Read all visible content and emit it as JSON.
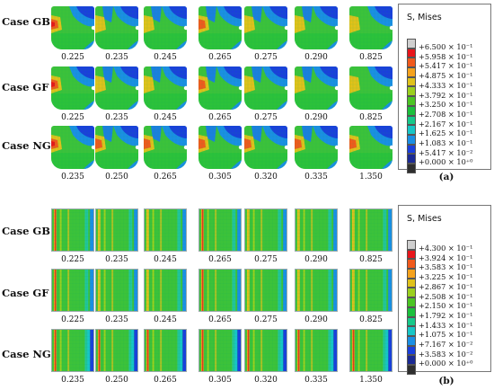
{
  "panels": [
    {
      "sub_label": "(a)",
      "legend": {
        "title": "S, Mises",
        "ticks": [
          "+6.500 × 10⁻¹",
          "+5.958 × 10⁻¹",
          "+5.417 × 10⁻¹",
          "+4.875 × 10⁻¹",
          "+4.333 × 10⁻¹",
          "+3.792 × 10⁻¹",
          "+3.250 × 10⁻¹",
          "+2.708 × 10⁻¹",
          "+2.167 × 10⁻¹",
          "+1.625 × 10⁻¹",
          "+1.083 × 10⁻¹",
          "+5.417 × 10⁻²",
          "+0.000 × 10⁺⁰"
        ],
        "colors": [
          "#cfcfcf",
          "#e8161b",
          "#f15a1c",
          "#f5a21d",
          "#e0c21a",
          "#9bd01e",
          "#4bc523",
          "#1bc03c",
          "#16c98a",
          "#17c6c6",
          "#1a8fe4",
          "#1a3fdc",
          "#1b2a94",
          "#2f2f2f"
        ]
      },
      "rows": [
        {
          "label": "Case GB",
          "values": [
            "0.225",
            "0.235",
            "0.245",
            "0.265",
            "0.275",
            "0.290",
            "0.825"
          ]
        },
        {
          "label": "Case GF",
          "values": [
            "0.225",
            "0.235",
            "0.245",
            "0.265",
            "0.275",
            "0.290",
            "0.825"
          ]
        },
        {
          "label": "Case NG",
          "values": [
            "0.235",
            "0.250",
            "0.265",
            "0.305",
            "0.320",
            "0.335",
            "1.350"
          ]
        }
      ]
    },
    {
      "sub_label": "(b)",
      "legend": {
        "title": "S, Mises",
        "ticks": [
          "+4.300 × 10⁻¹",
          "+3.924 × 10⁻¹",
          "+3.583 × 10⁻¹",
          "+3.225 × 10⁻¹",
          "+2.867 × 10⁻¹",
          "+2.508 × 10⁻¹",
          "+2.150 × 10⁻¹",
          "+1.792 × 10⁻¹",
          "+1.433 × 10⁻¹",
          "+1.075 × 10⁻¹",
          "+7.167 × 10⁻²",
          "+3.583 × 10⁻²",
          "+0.000 × 10⁺⁰"
        ],
        "colors": [
          "#cfcfcf",
          "#e8161b",
          "#f15a1c",
          "#f5a21d",
          "#e0c21a",
          "#9bd01e",
          "#4bc523",
          "#1bc03c",
          "#16c98a",
          "#17c6c6",
          "#1a8fe4",
          "#1a3fdc",
          "#1b2a94",
          "#2f2f2f"
        ]
      },
      "rows": [
        {
          "label": "Case GB",
          "values": [
            "0.225",
            "0.235",
            "0.245",
            "0.265",
            "0.275",
            "0.290",
            "0.825"
          ]
        },
        {
          "label": "Case GF",
          "values": [
            "0.225",
            "0.235",
            "0.245",
            "0.265",
            "0.275",
            "0.290",
            "0.825"
          ]
        },
        {
          "label": "Case NG",
          "values": [
            "0.235",
            "0.250",
            "0.265",
            "0.305",
            "0.320",
            "0.335",
            "1.350"
          ]
        }
      ]
    }
  ]
}
